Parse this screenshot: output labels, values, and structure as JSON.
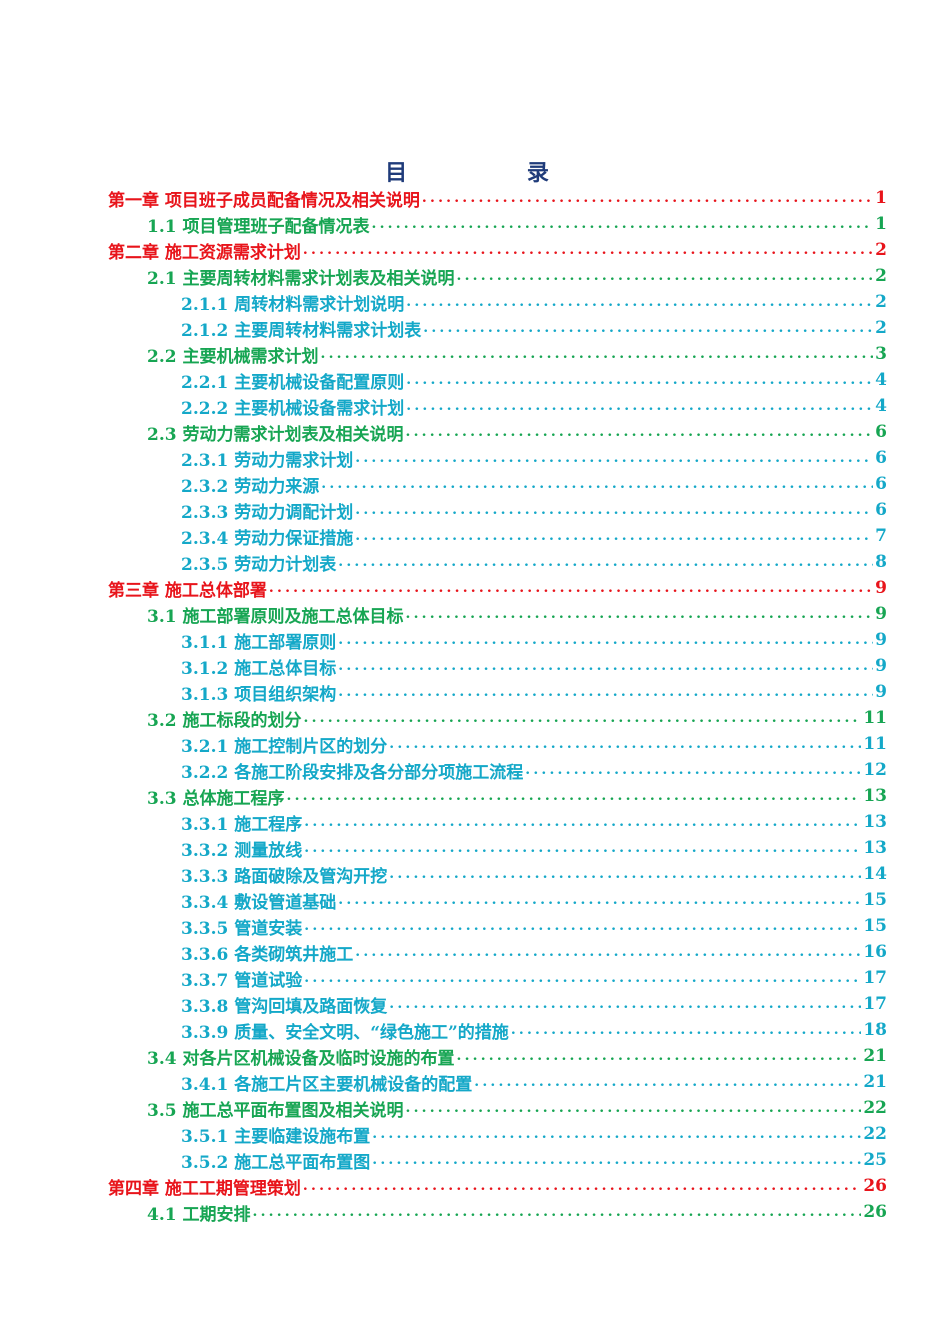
{
  "title": "目 录",
  "colors": {
    "chapter": "#e8141b",
    "section": "#17a553",
    "subsection": "#14a8c8",
    "title": "#1f3b7a"
  },
  "toc": [
    {
      "level": 1,
      "text": "第一章  项目班子成员配备情况及相关说明",
      "page": "1"
    },
    {
      "level": 2,
      "text": "1.1 项目管理班子配备情况表",
      "page": "1"
    },
    {
      "level": 1,
      "text": "第二章  施工资源需求计划",
      "page": "2"
    },
    {
      "level": 2,
      "text": "2.1 主要周转材料需求计划表及相关说明",
      "page": "2"
    },
    {
      "level": 3,
      "text": "2.1.1 周转材料需求计划说明",
      "page": "2"
    },
    {
      "level": 3,
      "text": "2.1.2 主要周转材料需求计划表",
      "page": "2"
    },
    {
      "level": 2,
      "text": "2.2 主要机械需求计划",
      "page": "3"
    },
    {
      "level": 3,
      "text": "2.2.1 主要机械设备配置原则",
      "page": "4"
    },
    {
      "level": 3,
      "text": "2.2.2 主要机械设备需求计划",
      "page": "4"
    },
    {
      "level": 2,
      "text": "2.3 劳动力需求计划表及相关说明",
      "page": "6"
    },
    {
      "level": 3,
      "text": "2.3.1 劳动力需求计划",
      "page": "6"
    },
    {
      "level": 3,
      "text": "2.3.2 劳动力来源",
      "page": "6"
    },
    {
      "level": 3,
      "text": "2.3.3 劳动力调配计划",
      "page": "6"
    },
    {
      "level": 3,
      "text": "2.3.4 劳动力保证措施",
      "page": "7"
    },
    {
      "level": 3,
      "text": "2.3.5 劳动力计划表",
      "page": "8"
    },
    {
      "level": 1,
      "text": "第三章  施工总体部署",
      "page": "9"
    },
    {
      "level": 2,
      "text": "3.1 施工部署原则及施工总体目标",
      "page": "9"
    },
    {
      "level": 3,
      "text": "3.1.1 施工部署原则",
      "page": "9"
    },
    {
      "level": 3,
      "text": "3.1.2 施工总体目标",
      "page": "9"
    },
    {
      "level": 3,
      "text": "3.1.3 项目组织架构",
      "page": "9"
    },
    {
      "level": 2,
      "text": "3.2 施工标段的划分",
      "page": "11"
    },
    {
      "level": 3,
      "text": "3.2.1 施工控制片区的划分",
      "page": "11"
    },
    {
      "level": 3,
      "text": "3.2.2 各施工阶段安排及各分部分项施工流程",
      "page": "12"
    },
    {
      "level": 2,
      "text": "3.3 总体施工程序",
      "page": "13"
    },
    {
      "level": 3,
      "text": "3.3.1 施工程序",
      "page": "13"
    },
    {
      "level": 3,
      "text": "3.3.2 测量放线",
      "page": "13"
    },
    {
      "level": 3,
      "text": "3.3.3 路面破除及管沟开挖",
      "page": "14"
    },
    {
      "level": 3,
      "text": "3.3.4 敷设管道基础",
      "page": "15"
    },
    {
      "level": 3,
      "text": "3.3.5 管道安装",
      "page": "15"
    },
    {
      "level": 3,
      "text": "3.3.6 各类砌筑井施工",
      "page": "16"
    },
    {
      "level": 3,
      "text": "3.3.7 管道试验",
      "page": "17"
    },
    {
      "level": 3,
      "text": "3.3.8 管沟回填及路面恢复",
      "page": "17"
    },
    {
      "level": 3,
      "text": "3.3.9 质量、安全文明、“绿色施工”的措施",
      "page": "18"
    },
    {
      "level": 2,
      "text": "3.4 对各片区机械设备及临时设施的布置",
      "page": "21"
    },
    {
      "level": 3,
      "text": "3.4.1 各施工片区主要机械设备的配置",
      "page": "21"
    },
    {
      "level": 2,
      "text": "3.5 施工总平面布置图及相关说明",
      "page": "22"
    },
    {
      "level": 3,
      "text": "3.5.1 主要临建设施布置",
      "page": "22"
    },
    {
      "level": 3,
      "text": "3.5.2 施工总平面布置图",
      "page": "25"
    },
    {
      "level": 1,
      "text": "第四章  施工工期管理策划",
      "page": "26"
    },
    {
      "level": 2,
      "text": "4.1 工期安排",
      "page": "26"
    }
  ]
}
